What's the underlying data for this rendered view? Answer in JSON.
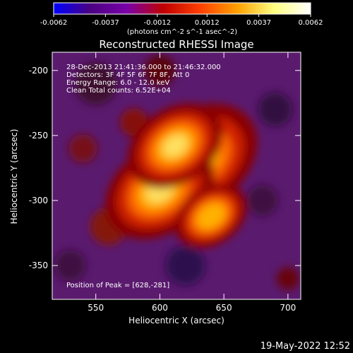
{
  "chart_data": {
    "type": "heatmap",
    "title": "Reconstructed RHESSI Image",
    "colorbar": {
      "min": -0.0062,
      "max": 0.0062,
      "ticks": [
        "-0.0062",
        "-0.0037",
        "-0.0012",
        "0.0012",
        "0.0037",
        "0.0062"
      ],
      "unit_label": "(photons cm^-2 s^-1 asec^-2)",
      "colors": [
        "#0000ff",
        "#4b0082",
        "#7a00a8",
        "#c00000",
        "#ff4000",
        "#ffa000",
        "#ffff80",
        "#ffffff"
      ]
    },
    "xlabel": "Heliocentric X (arcsec)",
    "ylabel": "Heliocentric Y (arcsec)",
    "xlim": [
      516,
      710
    ],
    "ylim": [
      -376,
      -186
    ],
    "xticks": [
      550,
      600,
      650,
      700
    ],
    "yticks": [
      -200,
      -250,
      -300,
      -350
    ],
    "annotations": [
      "28-Dec-2013 21:41:36.000 to 21:46:32.000",
      "Detectors: 3F 4F 5F 6F 7F 8F, Att 0",
      "Energy Range: 6.0 - 12.0 keV",
      "Clean     Total counts: 6.52E+04"
    ],
    "peak_label": "Position of Peak = [628,-281]",
    "peak": [
      628,
      -281
    ],
    "sources": [
      {
        "x": 628,
        "y": -268,
        "intensity": 1.0
      },
      {
        "x": 600,
        "y": -292,
        "intensity": 0.85
      },
      {
        "x": 612,
        "y": -258,
        "intensity": 0.7
      },
      {
        "x": 640,
        "y": -312,
        "intensity": 0.45
      }
    ]
  },
  "footer": {
    "timestamp": "19-May-2022 12:52"
  }
}
